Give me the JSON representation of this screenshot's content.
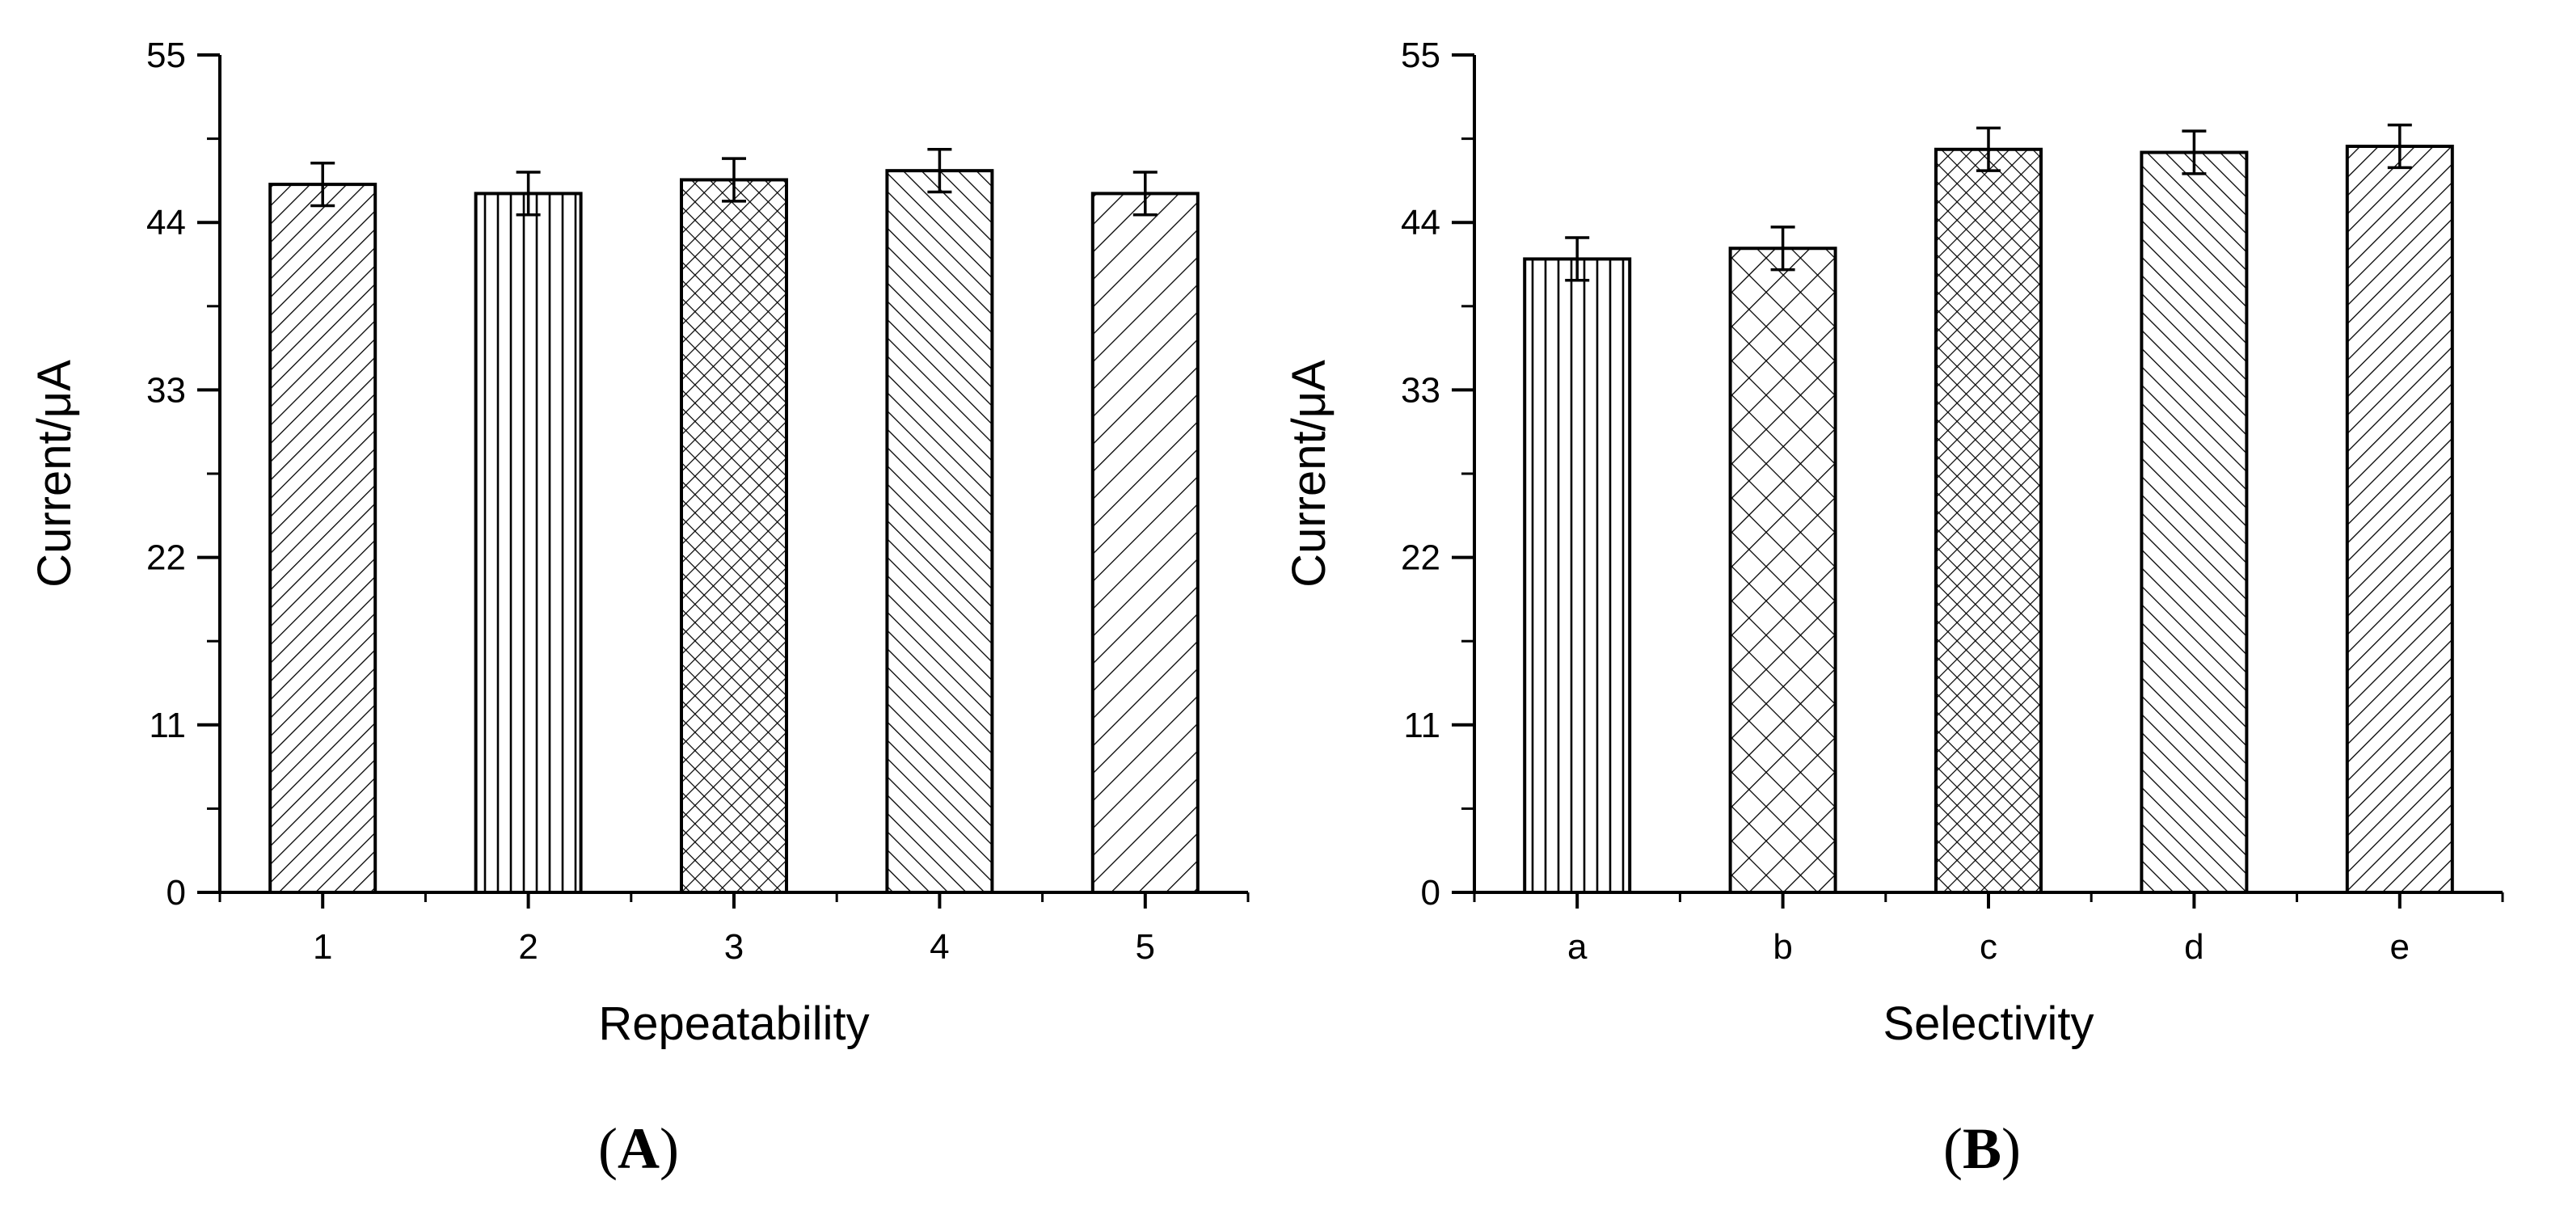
{
  "chart_data": [
    {
      "type": "bar",
      "panel_label": "A",
      "xlabel": "Repeatability",
      "ylabel": "Current/μA",
      "ylim": [
        0,
        55
      ],
      "yticks": [
        0,
        11,
        22,
        33,
        44,
        55
      ],
      "categories": [
        "1",
        "2",
        "3",
        "4",
        "5"
      ],
      "values": [
        46.5,
        45.9,
        46.8,
        47.4,
        45.9
      ],
      "errors": [
        1.4,
        1.4,
        1.4,
        1.4,
        1.4
      ],
      "patterns": [
        "diag-down",
        "vertical",
        "cross-fine",
        "diag-up",
        "diag-down-wide"
      ]
    },
    {
      "type": "bar",
      "panel_label": "B",
      "xlabel": "Selectivity",
      "ylabel": "Current/μA",
      "ylim": [
        0,
        55
      ],
      "yticks": [
        0,
        11,
        22,
        33,
        44,
        55
      ],
      "categories": [
        "a",
        "b",
        "c",
        "d",
        "e"
      ],
      "values": [
        41.6,
        42.3,
        48.8,
        48.6,
        49.0
      ],
      "errors": [
        1.4,
        1.4,
        1.4,
        1.4,
        1.4
      ],
      "patterns": [
        "vertical",
        "cross-coarse",
        "cross-fine",
        "diag-up",
        "diag-down"
      ]
    }
  ]
}
